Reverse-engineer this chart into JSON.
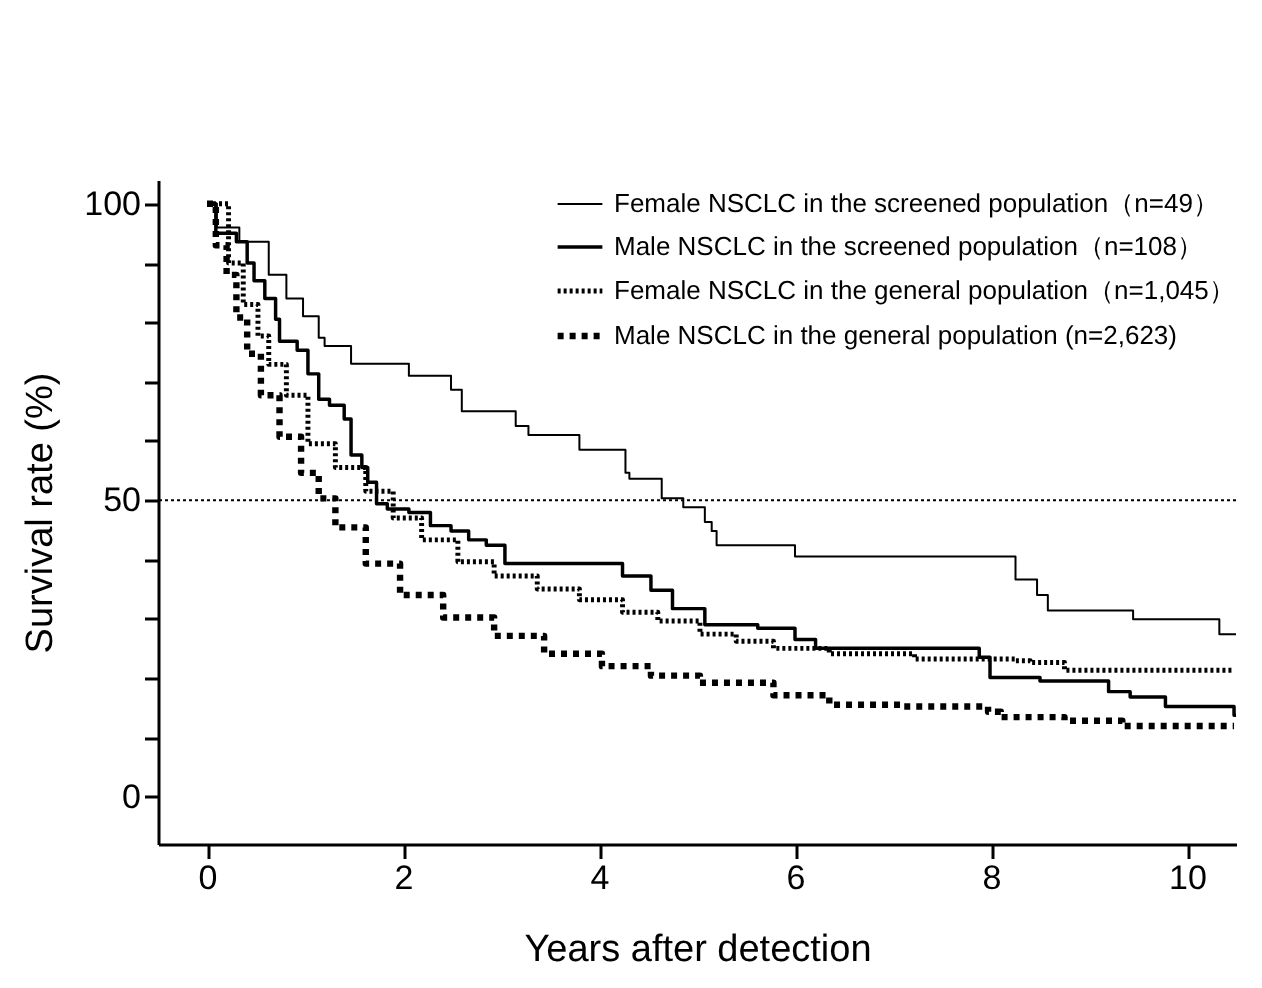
{
  "chart_data": {
    "type": "step",
    "xlabel": "Years after detection",
    "ylabel": "Survival rate (%)",
    "xlim": [
      -0.5,
      10.5
    ],
    "xticks": [
      0,
      2,
      4,
      6,
      8,
      10
    ],
    "ylim": [
      -8,
      104
    ],
    "yticks": [
      0,
      {
        "value": 10,
        "label": null
      },
      {
        "value": 20,
        "label": null
      },
      {
        "value": 30,
        "label": null
      },
      {
        "value": 40,
        "label": null
      },
      50,
      {
        "value": 60,
        "label": null
      },
      {
        "value": 70,
        "label": null
      },
      {
        "value": 80,
        "label": null
      },
      {
        "value": 90,
        "label": null
      },
      100
    ],
    "grid": false,
    "legend": "top right",
    "marker": "none",
    "ref_lines": [
      {
        "axis": "y",
        "value": 50,
        "line_style": "dotted",
        "color": "#000000"
      }
    ],
    "series": [
      {
        "name": "Female NSCLC in the screened population（n=49）",
        "color": "#000000",
        "line_style": "solid",
        "x": [
          0,
          0.1,
          0.33,
          0.63,
          0.81,
          0.98,
          1.14,
          1.2,
          1.47,
          2.06,
          2.49,
          2.6,
          2.67,
          3.15,
          3.28,
          3.8,
          4.27,
          4.31,
          4.64,
          4.86,
          5.08,
          5.15,
          5.2,
          5.23,
          6.0,
          8.25,
          8.47,
          8.58,
          9.45,
          10.33,
          10.5
        ],
        "values": [
          100,
          96,
          93.6,
          88,
          84,
          81,
          77.4,
          76,
          73,
          71,
          68.6,
          65,
          65,
          62.5,
          61,
          58.5,
          54.6,
          53.6,
          50.3,
          48.8,
          46.3,
          44.8,
          42.4,
          42.4,
          40.5,
          36.6,
          34,
          31.4,
          29.9,
          27.4,
          27.4
        ]
      },
      {
        "name": "Male NSCLC in the screened population（n=108）",
        "color": "#000000",
        "line_style": "solid",
        "x": [
          0,
          0.09,
          0.3,
          0.41,
          0.48,
          0.59,
          0.7,
          0.74,
          0.92,
          1.03,
          1.14,
          1.25,
          1.4,
          1.47,
          1.58,
          1.64,
          1.73,
          1.84,
          2.06,
          2.28,
          2.49,
          2.67,
          2.85,
          3.04,
          4.24,
          4.53,
          4.75,
          5.08,
          5.62,
          6.0,
          6.21,
          7.88,
          7.99,
          8.5,
          9.2,
          9.42,
          9.78,
          10.48,
          10.5
        ],
        "values": [
          100,
          95,
          93.6,
          90,
          87,
          84,
          80.5,
          76.8,
          75.3,
          71.3,
          67,
          66,
          63.7,
          57.6,
          55.5,
          53,
          49.4,
          48.5,
          47.9,
          45.7,
          44.8,
          43.3,
          42.4,
          39.3,
          37.2,
          34.8,
          31.7,
          29,
          28.4,
          26.5,
          25,
          23.5,
          20.1,
          19.5,
          17.7,
          16.8,
          15.2,
          13.7,
          13.7
        ]
      },
      {
        "name": "Female NSCLC in the general population（n=1,045）",
        "color": "#000000",
        "line_style": "dotted",
        "x": [
          0,
          0.22,
          0.37,
          0.52,
          0.63,
          0.81,
          1.03,
          1.31,
          1.62,
          1.9,
          2.19,
          2.56,
          2.93,
          3.37,
          3.8,
          4.24,
          4.6,
          5.03,
          5.4,
          5.78,
          6.35,
          7.22,
          8.25,
          8.4,
          8.75,
          10.48
        ],
        "values": [
          100,
          90,
          83,
          77.7,
          72.9,
          67.7,
          59.5,
          55.5,
          51.5,
          47,
          43.3,
          39.6,
          37.2,
          35,
          33.2,
          31.1,
          29.6,
          27.4,
          26.2,
          25,
          24.1,
          23.2,
          22.9,
          22.6,
          21.3,
          21.3
        ]
      },
      {
        "name": "Male NSCLC in the general population (n=2,623)",
        "color": "#000000",
        "line_style": "dashed",
        "x": [
          0,
          0.09,
          0.2,
          0.3,
          0.41,
          0.55,
          0.74,
          0.96,
          1.14,
          1.31,
          1.62,
          1.97,
          2.41,
          2.93,
          3.44,
          4.03,
          4.53,
          5.03,
          5.78,
          6.35,
          7.09,
          7.97,
          8.1,
          8.75,
          9.34,
          10.48
        ],
        "values": [
          100,
          93,
          88,
          80.8,
          74.7,
          67.7,
          60.7,
          54.6,
          50.3,
          45.4,
          39.3,
          34,
          30.2,
          27.1,
          24.1,
          22,
          20.4,
          19.2,
          17.1,
          15.5,
          15.2,
          14.3,
          13.4,
          12.8,
          11.9,
          11.9
        ]
      }
    ]
  }
}
